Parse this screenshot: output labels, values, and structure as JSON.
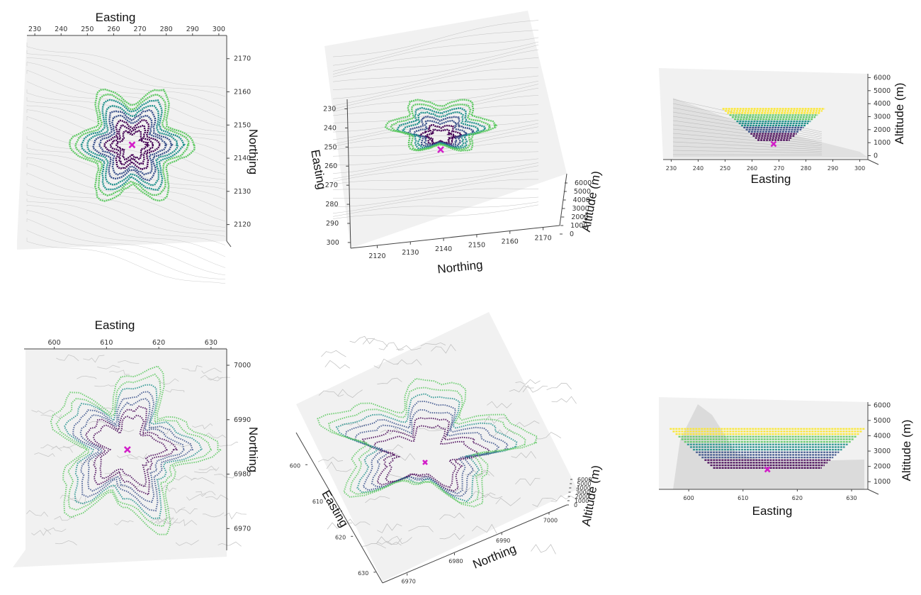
{
  "colors": {
    "marker": "#d21ec8",
    "viridis": [
      "#440154",
      "#3b528b",
      "#21918c",
      "#5ec962",
      "#fde725"
    ],
    "terrain": "#9a9a9a",
    "pane": "#f1f1f1"
  },
  "chart_data": [
    {
      "type": "scatter",
      "view": "top",
      "xlabel": "Easting",
      "ylabel": "Northing",
      "xticks": [
        230,
        240,
        250,
        260,
        270,
        280,
        290,
        300
      ],
      "yticks": [
        2120,
        2130,
        2140,
        2150,
        2160,
        2170
      ],
      "xlim": [
        227,
        303
      ],
      "ylim": [
        2115,
        2177
      ],
      "marker": {
        "x": 267,
        "y": 2144
      },
      "star_lobes": 6
    },
    {
      "type": "scatter",
      "view": "3d",
      "xlabel": "Easting",
      "ylabel": "Northing",
      "zlabel": "Altitude (m)",
      "xticks": [
        230,
        240,
        250,
        260,
        270,
        280,
        290,
        300
      ],
      "yticks": [
        2120,
        2130,
        2140,
        2150,
        2160,
        2170
      ],
      "zticks": [
        0,
        1000,
        2000,
        3000,
        4000,
        5000,
        6000
      ]
    },
    {
      "type": "scatter",
      "view": "side",
      "xlabel": "Easting",
      "ylabel": "Altitude (m)",
      "xticks": [
        230,
        240,
        250,
        260,
        270,
        280,
        290,
        300
      ],
      "yticks": [
        0,
        1000,
        2000,
        3000,
        4000,
        5000,
        6000
      ],
      "xlim": [
        227,
        303
      ],
      "ylim": [
        -300,
        6300
      ],
      "marker": {
        "x": 268,
        "y": 900
      }
    },
    {
      "type": "scatter",
      "view": "top",
      "xlabel": "Easting",
      "ylabel": "Northing",
      "xticks": [
        600,
        610,
        620,
        630
      ],
      "yticks": [
        6970,
        6980,
        6990,
        7000
      ],
      "xlim": [
        594.5,
        633
      ],
      "ylim": [
        6966,
        7003
      ],
      "marker": {
        "x": 614,
        "y": 6984.5
      }
    },
    {
      "type": "scatter",
      "view": "3d",
      "xlabel": "Easting",
      "ylabel": "Northing",
      "zlabel": "Altitude (m)",
      "xticks": [
        600,
        610,
        620,
        630
      ],
      "yticks": [
        6970,
        6980,
        6990,
        7000
      ],
      "zticks": [
        0,
        1000,
        2000,
        3000,
        4000,
        5000,
        6000
      ]
    },
    {
      "type": "scatter",
      "view": "side",
      "xlabel": "Easting",
      "ylabel": "Altitude (m)",
      "xticks": [
        600,
        610,
        620,
        630
      ],
      "yticks": [
        1000,
        2000,
        3000,
        4000,
        5000,
        6000
      ],
      "xlim": [
        594.5,
        633
      ],
      "ylim": [
        500,
        6200
      ],
      "marker": {
        "x": 614.5,
        "y": 1800
      }
    }
  ]
}
